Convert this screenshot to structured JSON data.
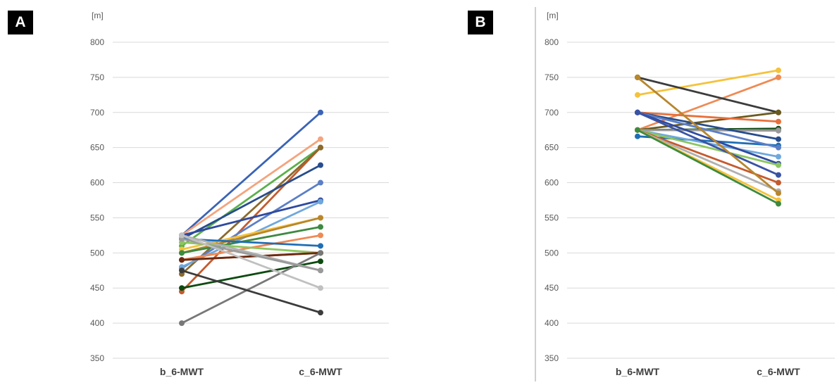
{
  "panels": [
    {
      "label": "A"
    },
    {
      "label": "B"
    }
  ],
  "chart_data": [
    {
      "type": "line",
      "panel": "A",
      "ylabel": "[m]",
      "ylim": [
        350,
        800
      ],
      "yticks": [
        350,
        400,
        450,
        500,
        550,
        600,
        650,
        700,
        750,
        800
      ],
      "categories": [
        "b_6-MWT",
        "c_6-MWT"
      ],
      "grid": true,
      "legend": "none",
      "series": [
        {
          "values": [
            525,
            700
          ],
          "color": "#3a63b5"
        },
        {
          "values": [
            525,
            662
          ],
          "color": "#f4a47c"
        },
        {
          "values": [
            510,
            650
          ],
          "color": "#5ab04a"
        },
        {
          "values": [
            445,
            650
          ],
          "color": "#c55a2e"
        },
        {
          "values": [
            470,
            650
          ],
          "color": "#8b6a2b"
        },
        {
          "values": [
            520,
            625
          ],
          "color": "#274d8c"
        },
        {
          "values": [
            478,
            600
          ],
          "color": "#5b7fc7"
        },
        {
          "values": [
            525,
            575
          ],
          "color": "#2f4aa0"
        },
        {
          "values": [
            480,
            573
          ],
          "color": "#6fa8dc"
        },
        {
          "values": [
            505,
            550
          ],
          "color": "#f5c23c"
        },
        {
          "values": [
            500,
            550
          ],
          "color": "#b8862c"
        },
        {
          "values": [
            500,
            537
          ],
          "color": "#3d8a40"
        },
        {
          "values": [
            490,
            525
          ],
          "color": "#ef8a54"
        },
        {
          "values": [
            520,
            510
          ],
          "color": "#1f6eb5"
        },
        {
          "values": [
            515,
            500
          ],
          "color": "#8cc660"
        },
        {
          "values": [
            490,
            500
          ],
          "color": "#e8703a"
        },
        {
          "values": [
            450,
            488
          ],
          "color": "#0d4a10"
        },
        {
          "values": [
            490,
            500
          ],
          "color": "#6b2a10"
        },
        {
          "values": [
            400,
            500
          ],
          "color": "#787878"
        },
        {
          "values": [
            525,
            475
          ],
          "color": "#b0b0b0"
        },
        {
          "values": [
            520,
            475
          ],
          "color": "#9a9a9a"
        },
        {
          "values": [
            525,
            450
          ],
          "color": "#c0c0c0"
        },
        {
          "values": [
            475,
            415
          ],
          "color": "#3c3c3c"
        }
      ]
    },
    {
      "type": "line",
      "panel": "B",
      "ylabel": "[m]",
      "ylim": [
        350,
        800
      ],
      "yticks": [
        350,
        400,
        450,
        500,
        550,
        600,
        650,
        700,
        750,
        800
      ],
      "categories": [
        "b_6-MWT",
        "c_6-MWT"
      ],
      "grid": true,
      "legend": "none",
      "series": [
        {
          "values": [
            725,
            760
          ],
          "color": "#f5c23c"
        },
        {
          "values": [
            675,
            750
          ],
          "color": "#ef8a54"
        },
        {
          "values": [
            750,
            700
          ],
          "color": "#3c3c3c"
        },
        {
          "values": [
            675,
            700
          ],
          "color": "#6b5a1e"
        },
        {
          "values": [
            700,
            687
          ],
          "color": "#e8703a"
        },
        {
          "values": [
            675,
            677
          ],
          "color": "#0d4a10"
        },
        {
          "values": [
            675,
            675
          ],
          "color": "#787878"
        },
        {
          "values": [
            675,
            674
          ],
          "color": "#9a9a9a"
        },
        {
          "values": [
            700,
            662
          ],
          "color": "#274d8c"
        },
        {
          "values": [
            666,
            653
          ],
          "color": "#1f6eb5"
        },
        {
          "values": [
            700,
            650
          ],
          "color": "#5b7fc7"
        },
        {
          "values": [
            675,
            637
          ],
          "color": "#6fa8dc"
        },
        {
          "values": [
            700,
            627
          ],
          "color": "#2f4aa0"
        },
        {
          "values": [
            675,
            625
          ],
          "color": "#8cc660"
        },
        {
          "values": [
            700,
            611
          ],
          "color": "#3a53a4"
        },
        {
          "values": [
            675,
            600
          ],
          "color": "#c55a2e"
        },
        {
          "values": [
            675,
            588
          ],
          "color": "#b0b0b0"
        },
        {
          "values": [
            750,
            585
          ],
          "color": "#b8862c"
        },
        {
          "values": [
            675,
            575
          ],
          "color": "#f5c23c"
        },
        {
          "values": [
            675,
            570
          ],
          "color": "#3d8a40"
        }
      ]
    }
  ]
}
